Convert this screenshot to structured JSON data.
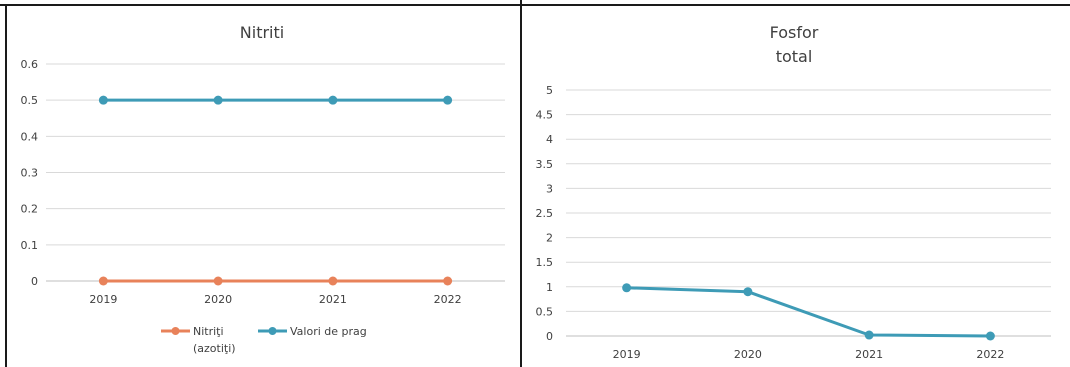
{
  "colors": {
    "border": "#1a1a1a",
    "grid": "#d9d9d9",
    "axis": "#bfbfbf",
    "text": "#404040",
    "orange": "#e8825a",
    "blue": "#3e9bb6"
  },
  "chart_data": [
    {
      "type": "line",
      "title": "Nitriti",
      "xlabel": "",
      "ylabel": "",
      "categories": [
        "2019",
        "2020",
        "2021",
        "2022"
      ],
      "ylim": [
        0,
        0.6
      ],
      "yticks": [
        "0",
        "0.1",
        "0.2",
        "0.3",
        "0.4",
        "0.5",
        "0.6"
      ],
      "grid": true,
      "legend": "bottom",
      "series": [
        {
          "name": "Nitriţi",
          "name_line2": "(azotiţi)",
          "color": "#e8825a",
          "values": [
            0,
            0,
            0,
            0
          ]
        },
        {
          "name": "Valori de prag",
          "color": "#3e9bb6",
          "values": [
            0.5,
            0.5,
            0.5,
            0.5
          ]
        }
      ]
    },
    {
      "type": "line",
      "title": "Fosfor",
      "title_line2": "total",
      "xlabel": "",
      "ylabel": "",
      "categories": [
        "2019",
        "2020",
        "2021",
        "2022"
      ],
      "ylim": [
        0,
        5
      ],
      "yticks": [
        "0",
        "0.5",
        "1",
        "1.5",
        "2",
        "2.5",
        "3",
        "3.5",
        "4",
        "4.5",
        "5"
      ],
      "grid": true,
      "legend": "none",
      "series": [
        {
          "color": "#3e9bb6",
          "values": [
            0.98,
            0.9,
            0.02,
            0
          ]
        }
      ]
    }
  ]
}
